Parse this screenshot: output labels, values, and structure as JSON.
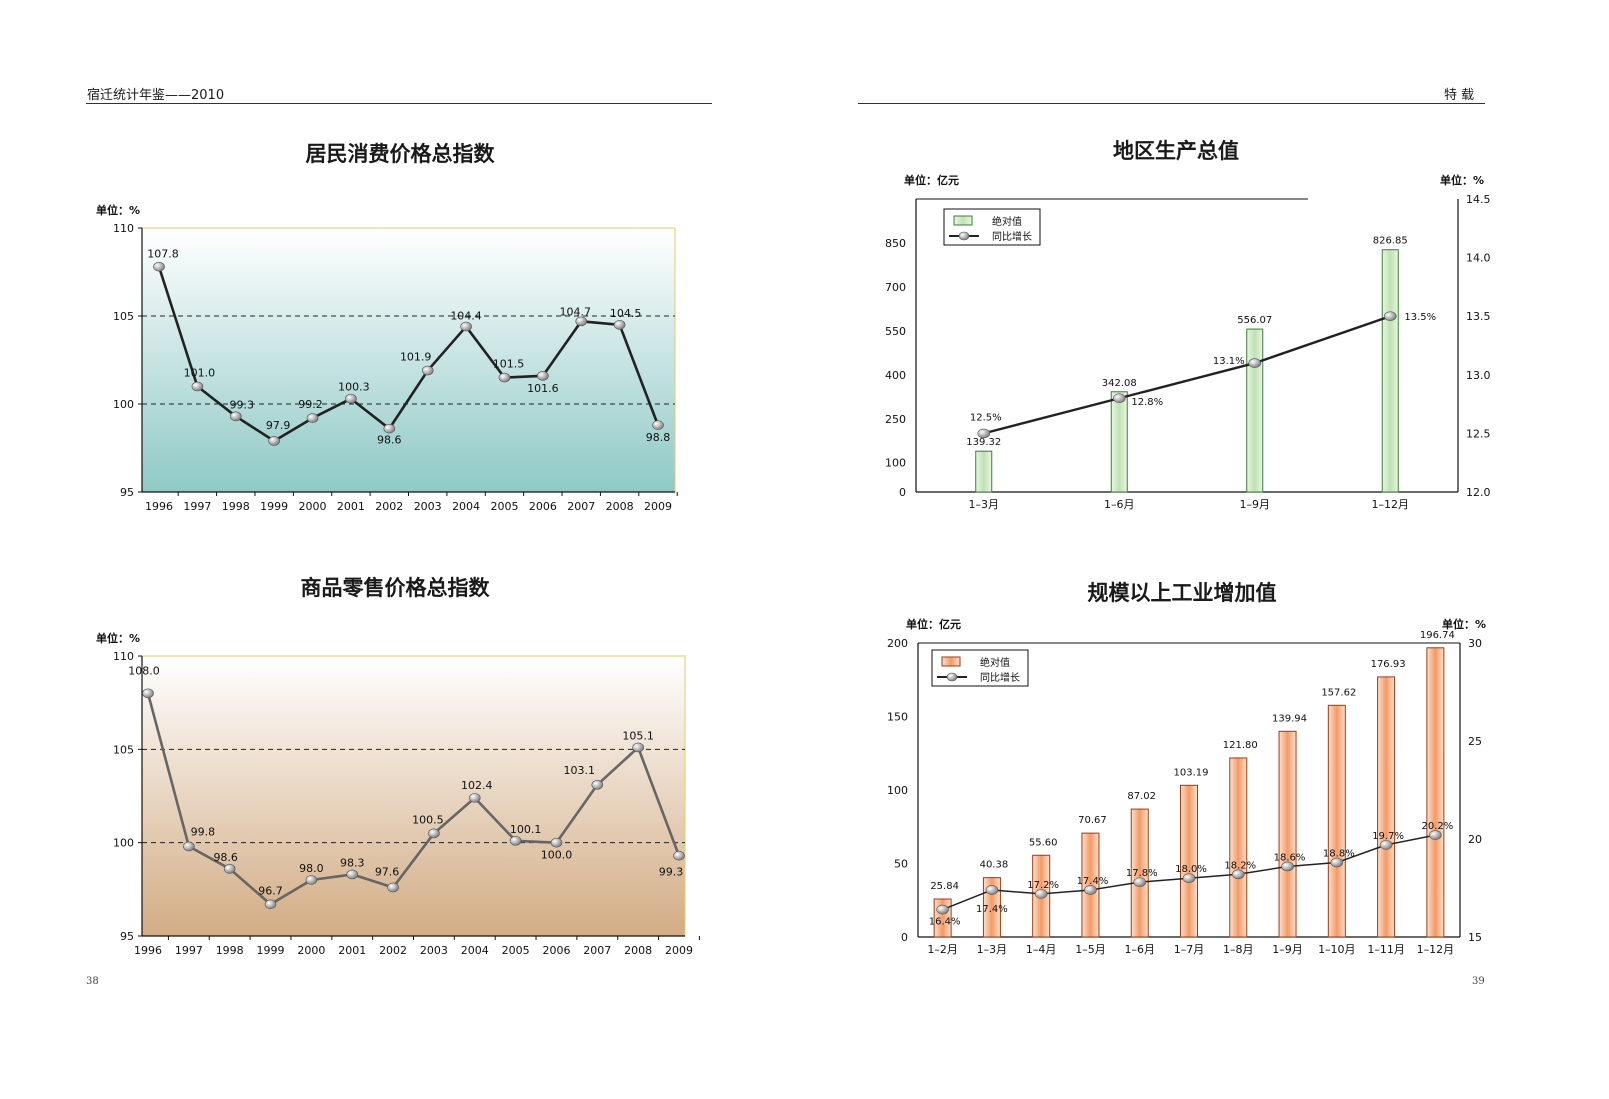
{
  "header": {
    "left": "宿迁统计年鉴——2010",
    "right": "特  载"
  },
  "page_numbers": {
    "left": "38",
    "right": "39"
  },
  "colors": {
    "teal": "#8fc9c6",
    "tan": "#d2ac84",
    "green_bar": "#cbe8c0",
    "orange_bar": "#f39a66",
    "line": "#222222"
  },
  "chart_data": [
    {
      "id": "cpi",
      "type": "line",
      "title": "居民消费价格总指数",
      "y_unit": "单位：%",
      "categories": [
        "1996",
        "1997",
        "1998",
        "1999",
        "2000",
        "2001",
        "2002",
        "2003",
        "2004",
        "2005",
        "2006",
        "2007",
        "2008",
        "2009"
      ],
      "series": [
        {
          "values": [
            107.8,
            101.0,
            99.3,
            97.9,
            99.2,
            100.3,
            98.6,
            101.9,
            104.4,
            101.5,
            101.6,
            104.7,
            104.5,
            98.8
          ]
        }
      ],
      "labels": [
        "107.8",
        "101.0",
        "99.3",
        "97.9",
        "99.2",
        "100.3",
        "98.6",
        "101.9",
        "104.4",
        "101.5",
        "101.6",
        "104.7",
        "104.5",
        "98.8"
      ],
      "ylim": [
        95,
        110
      ],
      "yticks": [
        "95",
        "100",
        "105",
        "110"
      ],
      "reference_lines": [
        100,
        105
      ]
    },
    {
      "id": "rpi",
      "type": "line",
      "title": "商品零售价格总指数",
      "y_unit": "单位：%",
      "categories": [
        "1996",
        "1997",
        "1998",
        "1999",
        "2000",
        "2001",
        "2002",
        "2003",
        "2004",
        "2005",
        "2006",
        "2007",
        "2008",
        "2009"
      ],
      "series": [
        {
          "values": [
            108.0,
            99.8,
            98.6,
            96.7,
            98.0,
            98.3,
            97.6,
            100.5,
            102.4,
            100.1,
            100.0,
            103.1,
            105.1,
            99.3
          ]
        }
      ],
      "labels": [
        "108.0",
        "99.8",
        "98.6",
        "96.7",
        "98.0",
        "98.3",
        "97.6",
        "100.5",
        "102.4",
        "100.1",
        "100.0",
        "103.1",
        "105.1",
        "99.3"
      ],
      "ylim": [
        95,
        110
      ],
      "yticks": [
        "95",
        "100",
        "105",
        "110"
      ],
      "reference_lines": [
        100,
        105
      ]
    },
    {
      "id": "gdp",
      "type": "bar",
      "title": "地区生产总值",
      "y_unit_left": "单位：亿元",
      "y_unit_right": "单位：%",
      "categories": [
        "1–3月",
        "1–6月",
        "1–9月",
        "1–12月"
      ],
      "series": [
        {
          "name": "绝对值",
          "type": "bar",
          "values": [
            139.32,
            342.08,
            556.07,
            826.85
          ],
          "labels": [
            "139.32",
            "342.08",
            "556.07",
            "826.85"
          ]
        },
        {
          "name": "同比增长",
          "type": "line",
          "axis": "right",
          "values": [
            12.5,
            12.8,
            13.1,
            13.5
          ],
          "labels": [
            "12.5%",
            "12.8%",
            "13.1%",
            "13.5%"
          ]
        }
      ],
      "ylim_left": [
        0,
        1000
      ],
      "yticks_left": [
        "0",
        "100",
        "250",
        "400",
        "550",
        "700",
        "850"
      ],
      "yticks_left_values": [
        0,
        100,
        250,
        400,
        550,
        700,
        850
      ],
      "ylim_right": [
        12.0,
        14.5
      ],
      "yticks_right": [
        "12.0",
        "12.5",
        "13.0",
        "13.5",
        "14.0",
        "14.5"
      ],
      "legend": "top-left"
    },
    {
      "id": "ind",
      "type": "bar",
      "title": "规模以上工业增加值",
      "y_unit_left": "单位：亿元",
      "y_unit_right": "单位：%",
      "categories": [
        "1–2月",
        "1–3月",
        "1–4月",
        "1–5月",
        "1–6月",
        "1–7月",
        "1–8月",
        "1–9月",
        "1–10月",
        "1–11月",
        "1–12月"
      ],
      "series": [
        {
          "name": "绝对值",
          "type": "bar",
          "values": [
            25.84,
            40.38,
            55.6,
            70.67,
            87.02,
            103.19,
            121.8,
            139.94,
            157.62,
            176.93,
            196.74
          ],
          "labels": [
            "25.84",
            "40.38",
            "55.60",
            "70.67",
            "87.02",
            "103.19",
            "121.80",
            "139.94",
            "157.62",
            "176.93",
            "196.74"
          ]
        },
        {
          "name": "同比增长",
          "type": "line",
          "axis": "right",
          "values": [
            16.4,
            17.4,
            17.2,
            17.4,
            17.8,
            18.0,
            18.2,
            18.6,
            18.8,
            19.7,
            20.2
          ],
          "labels": [
            "16.4%",
            "17.4%",
            "17.2%",
            "17.4%",
            "17.8%",
            "18.0%",
            "18.2%",
            "18.6%",
            "18.8%",
            "19.7%",
            "20.2%"
          ]
        }
      ],
      "ylim_left": [
        0,
        200
      ],
      "yticks_left": [
        "0",
        "50",
        "100",
        "150",
        "200"
      ],
      "ylim_right": [
        15,
        30
      ],
      "yticks_right": [
        "15",
        "20",
        "25",
        "30"
      ],
      "legend": "top-left"
    }
  ]
}
